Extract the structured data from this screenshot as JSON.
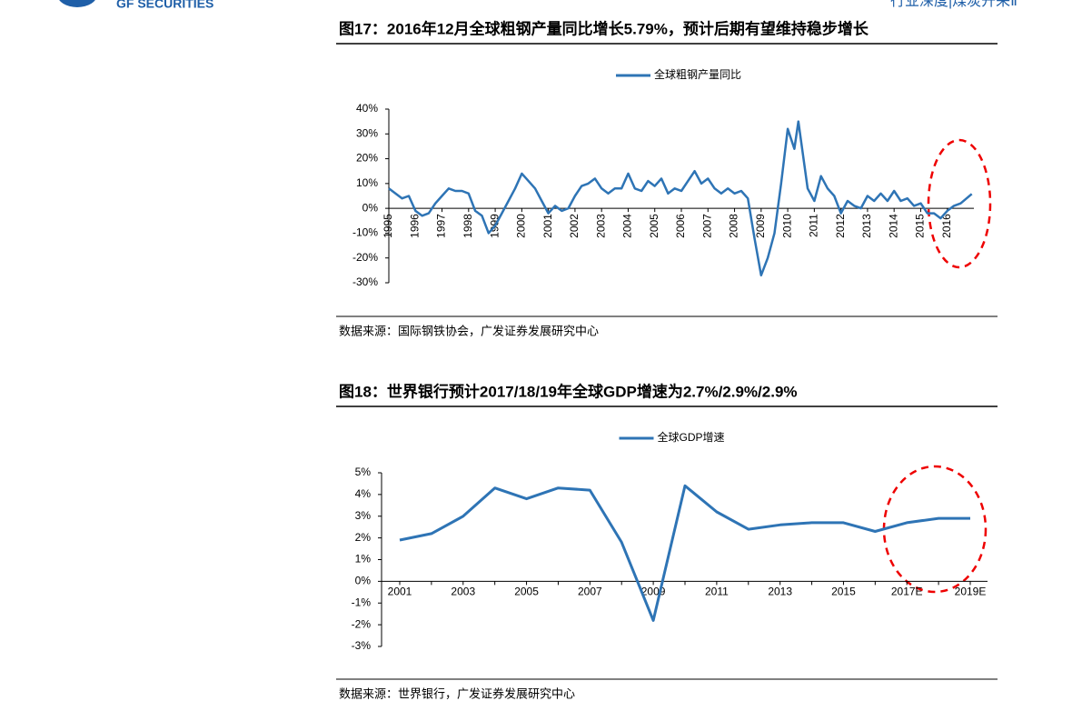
{
  "header": {
    "brand": "GF SECURITIES",
    "section": "行业深度|煤炭开采Ⅱ"
  },
  "chart_data": [
    {
      "type": "line",
      "title": "图17：2016年12月全球粗钢产量同比增长5.79%，预计后期有望维持稳步增长",
      "source": "数据来源：国际钢铁协会，广发证券发展研究中心",
      "x": [
        1995,
        1995.25,
        1995.5,
        1995.75,
        1996,
        1996.25,
        1996.5,
        1996.75,
        1997,
        1997.25,
        1997.5,
        1997.75,
        1998,
        1998.25,
        1998.5,
        1998.75,
        1999,
        1999.25,
        1999.5,
        1999.75,
        2000,
        2000.25,
        2000.5,
        2000.75,
        2001,
        2001.25,
        2001.5,
        2001.75,
        2002,
        2002.25,
        2002.5,
        2002.75,
        2003,
        2003.25,
        2003.5,
        2003.75,
        2004,
        2004.25,
        2004.5,
        2004.75,
        2005,
        2005.25,
        2005.5,
        2005.75,
        2006,
        2006.25,
        2006.5,
        2006.75,
        2007,
        2007.25,
        2007.5,
        2007.75,
        2008,
        2008.25,
        2008.5,
        2008.75,
        2009,
        2009.25,
        2009.5,
        2009.75,
        2010,
        2010.25,
        2010.4,
        2010.75,
        2011,
        2011.25,
        2011.5,
        2011.75,
        2012,
        2012.25,
        2012.5,
        2012.75,
        2013,
        2013.25,
        2013.5,
        2013.75,
        2014,
        2014.25,
        2014.5,
        2014.75,
        2015,
        2015.25,
        2015.5,
        2015.75,
        2016,
        2016.25,
        2016.5,
        2016.92
      ],
      "series": [
        {
          "name": "全球粗钢产量同比",
          "color": "#2e74b5",
          "values": [
            8,
            6,
            4,
            5,
            -1,
            -3,
            -2,
            2,
            5,
            8,
            7,
            7,
            6,
            -1,
            -3,
            -10,
            -7,
            -2,
            3,
            8,
            14,
            11,
            8,
            3,
            -2,
            1,
            -1,
            0,
            5,
            9,
            10,
            12,
            8,
            6,
            8,
            8,
            14,
            8,
            7,
            11,
            9,
            12,
            6,
            8,
            7,
            11,
            15,
            10,
            12,
            8,
            6,
            8,
            6,
            7,
            4,
            -12,
            -27,
            -20,
            -10,
            10,
            32,
            24,
            35,
            8,
            3,
            13,
            8,
            5,
            -2,
            3,
            1,
            0,
            5,
            3,
            6,
            3,
            7,
            3,
            4,
            1,
            2,
            -2,
            -2,
            -4,
            -1,
            1,
            2,
            5.79
          ]
        }
      ],
      "xlim": [
        1995,
        2017
      ],
      "xticks": [
        1995,
        1996,
        1997,
        1998,
        1999,
        2000,
        2001,
        2002,
        2003,
        2004,
        2005,
        2006,
        2007,
        2008,
        2009,
        2010,
        2011,
        2012,
        2013,
        2014,
        2015,
        2016
      ],
      "ylim": [
        -30,
        40
      ],
      "yticks": [
        {
          "value": -30,
          "label": "-30%"
        },
        {
          "value": -20,
          "label": "-20%"
        },
        {
          "value": -10,
          "label": "-10%"
        },
        {
          "value": 0,
          "label": "0%"
        },
        {
          "value": 10,
          "label": "10%"
        },
        {
          "value": 20,
          "label": "20%"
        },
        {
          "value": 30,
          "label": "30%"
        },
        {
          "value": 40,
          "label": "40%"
        }
      ]
    },
    {
      "type": "line",
      "title": "图18：世界银行预计2017/18/19年全球GDP增速为2.7%/2.9%/2.9%",
      "source": "数据来源：世界银行，广发证券发展研究中心",
      "categories": [
        "2001",
        null,
        "2003",
        null,
        "2005",
        null,
        "2007",
        null,
        "2009",
        null,
        "2011",
        null,
        "2013",
        null,
        "2015",
        null,
        "2017E",
        null,
        "2019E"
      ],
      "series": [
        {
          "name": "全球GDP增速",
          "color": "#2e74b5",
          "values": [
            1.9,
            2.2,
            3.0,
            4.3,
            3.8,
            4.3,
            4.2,
            1.8,
            -1.8,
            4.4,
            3.2,
            2.4,
            2.6,
            2.7,
            2.7,
            2.3,
            2.7,
            2.9,
            2.9
          ]
        }
      ],
      "ylim": [
        -3,
        5
      ],
      "yticks": [
        {
          "value": -3,
          "label": "-3%"
        },
        {
          "value": -2,
          "label": "-2%"
        },
        {
          "value": -1,
          "label": "-1%"
        },
        {
          "value": 0,
          "label": "0%"
        },
        {
          "value": 1,
          "label": "1%"
        },
        {
          "value": 2,
          "label": "2%"
        },
        {
          "value": 3,
          "label": "3%"
        },
        {
          "value": 4,
          "label": "4%"
        },
        {
          "value": 5,
          "label": "5%"
        }
      ]
    }
  ]
}
